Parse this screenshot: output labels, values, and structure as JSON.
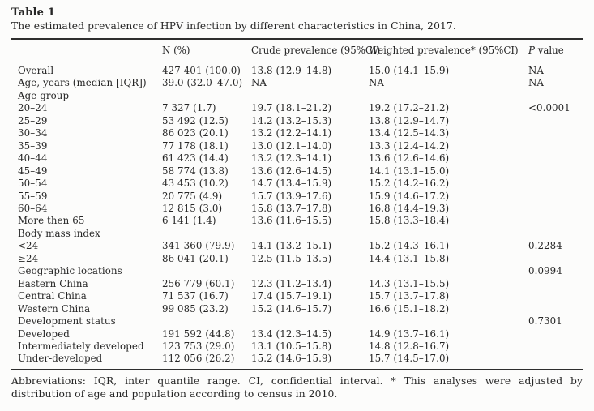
{
  "title": "Table 1",
  "caption": "The estimated prevalence of HPV infection by different characteristics in China, 2017.",
  "table": {
    "headers": [
      "",
      "N (%)",
      "Crude prevalence (95%CI)",
      "Weighted prevalence* (95%CI)",
      "P value"
    ],
    "rows": [
      {
        "label": "Overall",
        "n": "427 401 (100.0)",
        "crude": "13.8 (12.9–14.8)",
        "weighted": "15.0 (14.1–15.9)",
        "p": "NA"
      },
      {
        "label": "Age, years (median [IQR])",
        "n": "39.0 (32.0–47.0)",
        "crude": "NA",
        "weighted": "NA",
        "p": "NA"
      },
      {
        "label": "Age group",
        "n": "",
        "crude": "",
        "weighted": "",
        "p": ""
      },
      {
        "label": "20–24",
        "n": "7 327 (1.7)",
        "crude": "19.7 (18.1–21.2)",
        "weighted": "19.2 (17.2–21.2)",
        "p": "<0.0001"
      },
      {
        "label": "25–29",
        "n": "53 492 (12.5)",
        "crude": "14.2 (13.2–15.3)",
        "weighted": "13.8 (12.9–14.7)",
        "p": ""
      },
      {
        "label": "30–34",
        "n": "86 023 (20.1)",
        "crude": "13.2 (12.2–14.1)",
        "weighted": "13.4 (12.5–14.3)",
        "p": ""
      },
      {
        "label": "35–39",
        "n": "77 178 (18.1)",
        "crude": "13.0 (12.1–14.0)",
        "weighted": "13.3 (12.4–14.2)",
        "p": ""
      },
      {
        "label": "40–44",
        "n": "61 423 (14.4)",
        "crude": "13.2 (12.3–14.1)",
        "weighted": "13.6 (12.6–14.6)",
        "p": ""
      },
      {
        "label": "45–49",
        "n": "58 774 (13.8)",
        "crude": "13.6 (12.6–14.5)",
        "weighted": "14.1 (13.1–15.0)",
        "p": ""
      },
      {
        "label": "50–54",
        "n": "43 453 (10.2)",
        "crude": "14.7 (13.4–15.9)",
        "weighted": "15.2 (14.2–16.2)",
        "p": ""
      },
      {
        "label": "55–59",
        "n": "20 775 (4.9)",
        "crude": "15.7 (13.9–17.6)",
        "weighted": "15.9 (14.6–17.2)",
        "p": ""
      },
      {
        "label": "60–64",
        "n": "12 815 (3.0)",
        "crude": "15.8 (13.7–17.8)",
        "weighted": "16.8 (14.4–19.3)",
        "p": ""
      },
      {
        "label": "More then 65",
        "n": "6 141 (1.4)",
        "crude": "13.6 (11.6–15.5)",
        "weighted": "15.8 (13.3–18.4)",
        "p": ""
      },
      {
        "label": "Body mass index",
        "n": "",
        "crude": "",
        "weighted": "",
        "p": ""
      },
      {
        "label": "<24",
        "n": "341 360 (79.9)",
        "crude": "14.1 (13.2–15.1)",
        "weighted": "15.2 (14.3–16.1)",
        "p": "0.2284"
      },
      {
        "label": "≥24",
        "n": "86 041 (20.1)",
        "crude": "12.5 (11.5–13.5)",
        "weighted": "14.4 (13.1–15.8)",
        "p": ""
      },
      {
        "label": "Geographic locations",
        "n": "",
        "crude": "",
        "weighted": "",
        "p": "0.0994"
      },
      {
        "label": "Eastern China",
        "n": "256 779 (60.1)",
        "crude": "12.3 (11.2–13.4)",
        "weighted": "14.3 (13.1–15.5)",
        "p": ""
      },
      {
        "label": "Central China",
        "n": "71 537 (16.7)",
        "crude": "17.4 (15.7–19.1)",
        "weighted": "15.7 (13.7–17.8)",
        "p": ""
      },
      {
        "label": "Western China",
        "n": "99 085 (23.2)",
        "crude": "15.2 (14.6–15.7)",
        "weighted": "16.6 (15.1–18.2)",
        "p": ""
      },
      {
        "label": "Development status",
        "n": "",
        "crude": "",
        "weighted": "",
        "p": "0.7301"
      },
      {
        "label": "Developed",
        "n": "191 592 (44.8)",
        "crude": "13.4 (12.3–14.5)",
        "weighted": "14.9 (13.7–16.1)",
        "p": ""
      },
      {
        "label": "Intermediately developed",
        "n": "123 753 (29.0)",
        "crude": "13.1 (10.5–15.8)",
        "weighted": "14.8 (12.8–16.7)",
        "p": ""
      },
      {
        "label": "Under-developed",
        "n": "112 056 (26.2)",
        "crude": "15.2 (14.6–15.9)",
        "weighted": "15.7 (14.5–17.0)",
        "p": ""
      }
    ]
  },
  "footnote": "Abbreviations: IQR, inter quantile range. CI, confidential interval. * This analyses were adjusted by distribution of age and population according to census in 2010."
}
